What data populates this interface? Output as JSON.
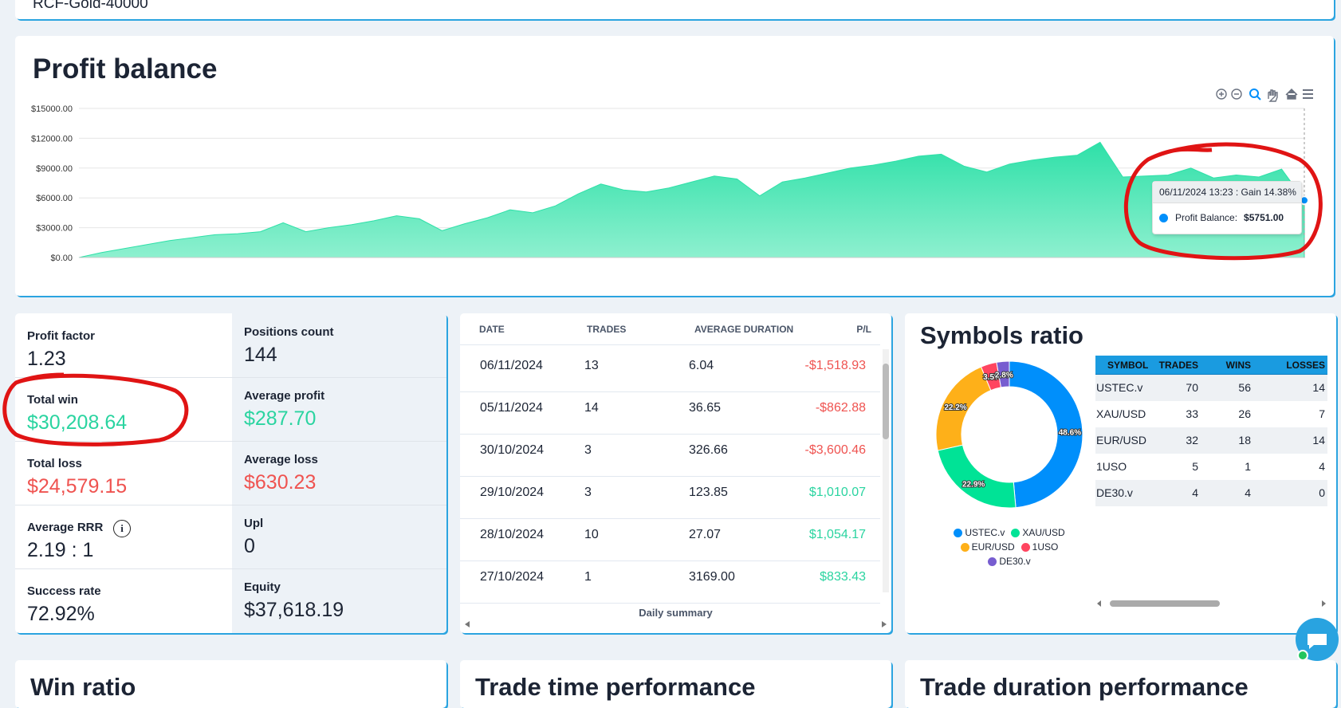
{
  "top_card": {
    "text": "RCF-Gold-40000"
  },
  "profit_balance": {
    "title": "Profit balance",
    "chart": {
      "type": "area",
      "color": "#2ee0a8",
      "ylim": [
        0,
        15000
      ],
      "yticks": [
        {
          "value": 0,
          "label": "$0.00"
        },
        {
          "value": 3000,
          "label": "$3000.00"
        },
        {
          "value": 6000,
          "label": "$6000.00"
        },
        {
          "value": 9000,
          "label": "$9000.00"
        },
        {
          "value": 12000,
          "label": "$12000.00"
        },
        {
          "value": 15000,
          "label": "$15000.00"
        }
      ],
      "grid": true,
      "values": [
        0,
        500,
        900,
        1300,
        1700,
        2000,
        2300,
        2400,
        2600,
        3500,
        2600,
        3000,
        3300,
        3700,
        4200,
        3900,
        2700,
        3400,
        4000,
        4800,
        4500,
        5200,
        6400,
        7400,
        6800,
        6600,
        7000,
        7600,
        8200,
        7900,
        6200,
        7600,
        8000,
        8500,
        9000,
        9300,
        9700,
        10200,
        10400,
        9200,
        8600,
        9400,
        9800,
        10100,
        10300,
        11600,
        8100,
        8200,
        8300,
        9000,
        8000,
        8300,
        8100,
        8900,
        5751
      ],
      "tooltip": {
        "title": "06/11/2024 13:23 : Gain 14.38%",
        "series_name": "Profit Balance:",
        "value_label": "$5751.00"
      }
    }
  },
  "stats": {
    "rows": [
      [
        {
          "label": "Profit factor",
          "value": "1.23"
        },
        {
          "label": "Positions count",
          "value": "144"
        }
      ],
      [
        {
          "label": "Total win",
          "value": "$30,208.64",
          "color": "#2ad4a0"
        },
        {
          "label": "Average profit",
          "value": "$287.70",
          "color": "#2ad4a0"
        }
      ],
      [
        {
          "label": "Total loss",
          "value": "$24,579.15",
          "color": "#ef5350"
        },
        {
          "label": "Average loss",
          "value": "$630.23",
          "color": "#ef5350"
        }
      ],
      [
        {
          "label": "Average RRR",
          "value": "2.19 : 1"
        },
        {
          "label": "Upl",
          "value": "0"
        }
      ],
      [
        {
          "label": "Success rate",
          "value": "72.92%"
        },
        {
          "label": "Equity",
          "value": "$37,618.19"
        }
      ]
    ]
  },
  "daily_summary": {
    "columns": [
      "DATE",
      "TRADES",
      "AVERAGE DURATION",
      "P/L"
    ],
    "rows": [
      [
        "06/11/2024",
        "13",
        "6.04",
        "-$1,518.93"
      ],
      [
        "05/11/2024",
        "14",
        "36.65",
        "-$862.88"
      ],
      [
        "30/10/2024",
        "3",
        "326.66",
        "-$3,600.46"
      ],
      [
        "29/10/2024",
        "3",
        "123.85",
        "$1,010.07"
      ],
      [
        "28/10/2024",
        "10",
        "27.07",
        "$1,054.17"
      ],
      [
        "27/10/2024",
        "1",
        "3169.00",
        "$833.43"
      ]
    ],
    "caption": "Daily summary"
  },
  "symbols_ratio": {
    "title": "Symbols ratio",
    "pie": {
      "type": "pie",
      "categories": [
        "USTEC.v",
        "XAU/USD",
        "EUR/USD",
        "1USO",
        "DE30.v"
      ],
      "values": [
        48.6,
        22.9,
        22.2,
        3.5,
        2.8
      ],
      "value_labels": [
        "48.6%",
        "22.9%",
        "22.2%",
        "3.5%",
        "2.8%"
      ],
      "colors": [
        "#008ffb",
        "#00e396",
        "#feb019",
        "#ff4560",
        "#775dd0"
      ]
    },
    "table": {
      "columns": [
        "SYMBOL",
        "TRADES",
        "WINS",
        "LOSSES"
      ],
      "rows": [
        [
          "USTEC.v",
          "70",
          "56",
          "14"
        ],
        [
          "XAU/USD",
          "33",
          "26",
          "7"
        ],
        [
          "EUR/USD",
          "32",
          "18",
          "14"
        ],
        [
          "1USO",
          "5",
          "1",
          "4"
        ],
        [
          "DE30.v",
          "4",
          "4",
          "0"
        ]
      ]
    }
  },
  "bottom_titles": [
    "Win ratio",
    "Trade time performance",
    "Trade duration performance"
  ]
}
